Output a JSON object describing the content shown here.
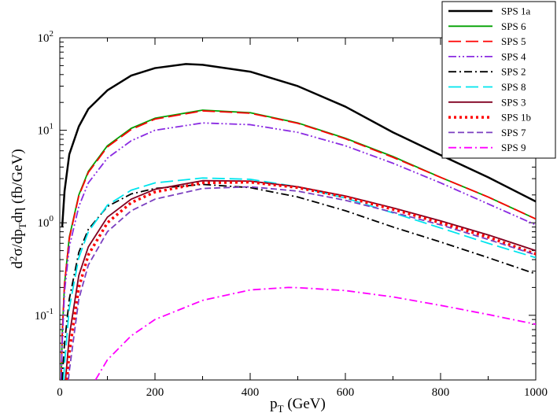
{
  "chart_data": {
    "type": "line",
    "title": "",
    "xlabel": {
      "main": "p",
      "sub": "T",
      "rest": " (GeV)"
    },
    "ylabel": {
      "a": "d",
      "b": "2",
      "c": "σ/dp",
      "d": "T",
      "e": "dη (fb/GeV)"
    },
    "xlim": [
      0,
      1000
    ],
    "ylim": [
      0.02,
      100
    ],
    "yscale": "log",
    "x_ticks": [
      "0",
      "200",
      "400",
      "600",
      "800",
      "1000"
    ],
    "y_ticks": [
      {
        "base": "10",
        "exp": "-1"
      },
      {
        "base": "10",
        "exp": "0"
      },
      {
        "base": "10",
        "exp": "1"
      },
      {
        "base": "10",
        "exp": "2"
      }
    ],
    "legend_position": "top-right",
    "series": [
      {
        "name": "SPS 1a",
        "color": "#000000",
        "dash": "solid",
        "peak_x": 265,
        "peak_y": 52,
        "points": [
          [
            5,
            0.9
          ],
          [
            10,
            2.2
          ],
          [
            20,
            5.5
          ],
          [
            40,
            11
          ],
          [
            60,
            17
          ],
          [
            100,
            27
          ],
          [
            150,
            39
          ],
          [
            200,
            47
          ],
          [
            265,
            52
          ],
          [
            300,
            51
          ],
          [
            400,
            43
          ],
          [
            500,
            30
          ],
          [
            600,
            18
          ],
          [
            700,
            9.5
          ],
          [
            800,
            5.4
          ],
          [
            900,
            3.1
          ],
          [
            1000,
            1.7
          ]
        ]
      },
      {
        "name": "SPS 6",
        "color": "#00a000",
        "dash": "solid",
        "peak_x": 305,
        "peak_y": 16.5,
        "points": [
          [
            3,
            0.02
          ],
          [
            5,
            0.06
          ],
          [
            10,
            0.22
          ],
          [
            20,
            0.7
          ],
          [
            40,
            2.0
          ],
          [
            60,
            3.6
          ],
          [
            100,
            6.8
          ],
          [
            150,
            10.5
          ],
          [
            200,
            13.5
          ],
          [
            300,
            16.5
          ],
          [
            400,
            15.5
          ],
          [
            500,
            12
          ],
          [
            600,
            8.2
          ],
          [
            700,
            5.2
          ],
          [
            800,
            3.1
          ],
          [
            900,
            1.9
          ],
          [
            1000,
            1.1
          ]
        ]
      },
      {
        "name": "SPS 5",
        "color": "#ff0000",
        "dash": "long",
        "peak_x": 310,
        "peak_y": 16.2,
        "points": [
          [
            3,
            0.02
          ],
          [
            5,
            0.06
          ],
          [
            10,
            0.22
          ],
          [
            20,
            0.68
          ],
          [
            40,
            1.95
          ],
          [
            60,
            3.5
          ],
          [
            100,
            6.6
          ],
          [
            150,
            10.2
          ],
          [
            200,
            13.2
          ],
          [
            300,
            16.2
          ],
          [
            400,
            15.3
          ],
          [
            500,
            11.9
          ],
          [
            600,
            8.1
          ],
          [
            700,
            5.1
          ],
          [
            800,
            3.1
          ],
          [
            900,
            1.9
          ],
          [
            1000,
            1.1
          ]
        ]
      },
      {
        "name": "SPS 4",
        "color": "#8a2be2",
        "dash": "dashdotdot",
        "peak_x": 310,
        "peak_y": 12,
        "points": [
          [
            3,
            0.02
          ],
          [
            5,
            0.05
          ],
          [
            10,
            0.18
          ],
          [
            20,
            0.55
          ],
          [
            40,
            1.5
          ],
          [
            60,
            2.7
          ],
          [
            100,
            5.0
          ],
          [
            150,
            7.7
          ],
          [
            200,
            10
          ],
          [
            300,
            12
          ],
          [
            400,
            11.5
          ],
          [
            500,
            9.5
          ],
          [
            600,
            6.8
          ],
          [
            700,
            4.4
          ],
          [
            800,
            2.7
          ],
          [
            900,
            1.6
          ],
          [
            1000,
            0.95
          ]
        ]
      },
      {
        "name": "SPS 2",
        "color": "#000000",
        "dash": "dashdot",
        "peak_x": 340,
        "peak_y": 2.6,
        "points": [
          [
            5,
            0.02
          ],
          [
            10,
            0.05
          ],
          [
            20,
            0.15
          ],
          [
            40,
            0.48
          ],
          [
            60,
            0.85
          ],
          [
            100,
            1.5
          ],
          [
            150,
            2.05
          ],
          [
            200,
            2.35
          ],
          [
            300,
            2.6
          ],
          [
            400,
            2.4
          ],
          [
            500,
            1.9
          ],
          [
            600,
            1.35
          ],
          [
            700,
            0.9
          ],
          [
            800,
            0.62
          ],
          [
            900,
            0.42
          ],
          [
            1000,
            0.28
          ]
        ]
      },
      {
        "name": "SPS 8",
        "color": "#00e5ee",
        "dash": "long",
        "peak_x": 360,
        "peak_y": 3.1,
        "points": [
          [
            8,
            0.02
          ],
          [
            10,
            0.03
          ],
          [
            20,
            0.12
          ],
          [
            40,
            0.42
          ],
          [
            60,
            0.8
          ],
          [
            100,
            1.55
          ],
          [
            150,
            2.25
          ],
          [
            200,
            2.7
          ],
          [
            300,
            3.05
          ],
          [
            400,
            2.95
          ],
          [
            500,
            2.45
          ],
          [
            600,
            1.85
          ],
          [
            700,
            1.28
          ],
          [
            800,
            0.88
          ],
          [
            900,
            0.6
          ],
          [
            1000,
            0.42
          ]
        ]
      },
      {
        "name": "SPS 3",
        "color": "#800020",
        "dash": "solid",
        "peak_x": 370,
        "peak_y": 2.9,
        "points": [
          [
            12,
            0.02
          ],
          [
            15,
            0.03
          ],
          [
            20,
            0.06
          ],
          [
            40,
            0.27
          ],
          [
            60,
            0.55
          ],
          [
            100,
            1.15
          ],
          [
            150,
            1.8
          ],
          [
            200,
            2.3
          ],
          [
            300,
            2.85
          ],
          [
            400,
            2.82
          ],
          [
            500,
            2.45
          ],
          [
            600,
            1.95
          ],
          [
            700,
            1.45
          ],
          [
            800,
            1.05
          ],
          [
            900,
            0.74
          ],
          [
            1000,
            0.5
          ]
        ]
      },
      {
        "name": "SPS 1b",
        "color": "#ff0000",
        "dash": "dotted",
        "peak_x": 375,
        "peak_y": 2.8,
        "points": [
          [
            15,
            0.02
          ],
          [
            20,
            0.04
          ],
          [
            40,
            0.2
          ],
          [
            60,
            0.45
          ],
          [
            100,
            1.0
          ],
          [
            150,
            1.65
          ],
          [
            200,
            2.15
          ],
          [
            300,
            2.7
          ],
          [
            400,
            2.75
          ],
          [
            500,
            2.4
          ],
          [
            600,
            1.9
          ],
          [
            700,
            1.4
          ],
          [
            800,
            1.0
          ],
          [
            900,
            0.7
          ],
          [
            1000,
            0.46
          ]
        ]
      },
      {
        "name": "SPS 7",
        "color": "#7b3fc0",
        "dash": "dashed",
        "peak_x": 390,
        "peak_y": 2.45,
        "points": [
          [
            18,
            0.02
          ],
          [
            20,
            0.025
          ],
          [
            40,
            0.15
          ],
          [
            60,
            0.35
          ],
          [
            100,
            0.8
          ],
          [
            150,
            1.35
          ],
          [
            200,
            1.8
          ],
          [
            300,
            2.35
          ],
          [
            400,
            2.45
          ],
          [
            500,
            2.2
          ],
          [
            600,
            1.75
          ],
          [
            700,
            1.3
          ],
          [
            800,
            0.95
          ],
          [
            900,
            0.66
          ],
          [
            1000,
            0.45
          ]
        ]
      },
      {
        "name": "SPS 9",
        "color": "#ff00ff",
        "dash": "dashdot",
        "peak_x": 480,
        "peak_y": 0.2,
        "points": [
          [
            75,
            0.02
          ],
          [
            100,
            0.033
          ],
          [
            150,
            0.06
          ],
          [
            200,
            0.09
          ],
          [
            300,
            0.145
          ],
          [
            400,
            0.188
          ],
          [
            480,
            0.2
          ],
          [
            500,
            0.199
          ],
          [
            600,
            0.185
          ],
          [
            700,
            0.158
          ],
          [
            800,
            0.128
          ],
          [
            900,
            0.102
          ],
          [
            1000,
            0.08
          ]
        ]
      }
    ]
  }
}
